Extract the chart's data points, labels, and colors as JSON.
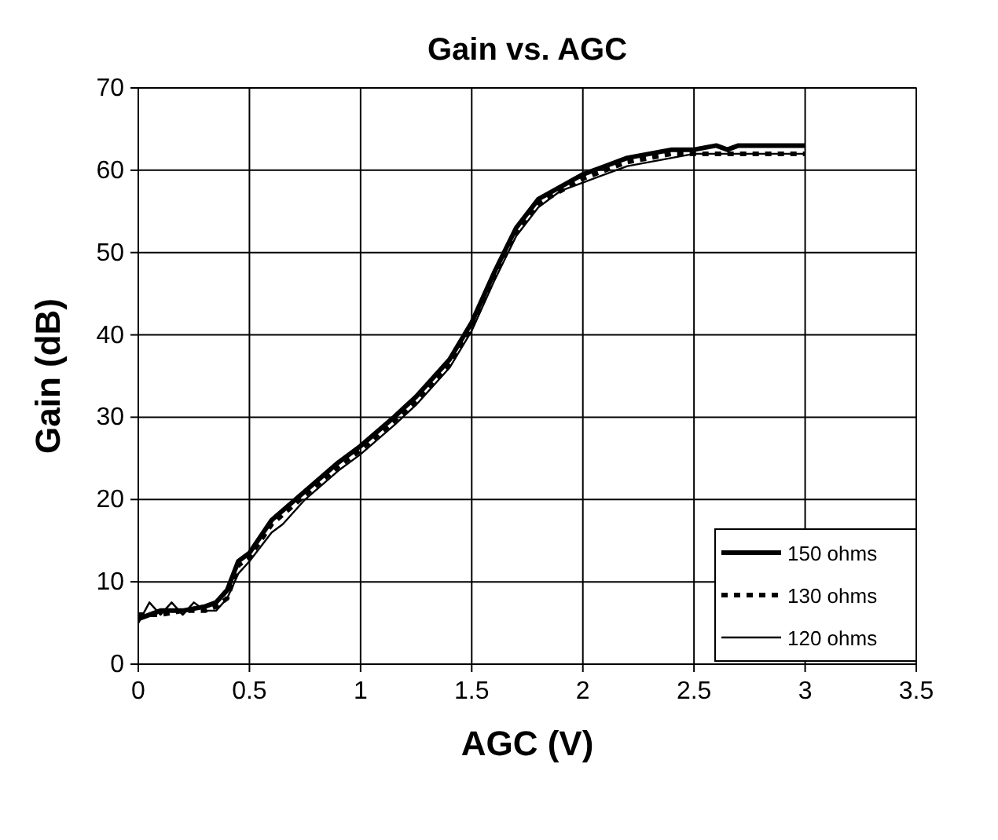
{
  "chart_data": {
    "type": "line",
    "title": "Gain vs. AGC",
    "xlabel": "AGC (V)",
    "ylabel": "Gain (dB)",
    "xlim": [
      0,
      3.5
    ],
    "xticks": [
      0,
      0.5,
      1,
      1.5,
      2,
      2.5,
      3,
      3.5
    ],
    "ylim": [
      0,
      70
    ],
    "yticks": [
      0,
      10,
      20,
      30,
      40,
      50,
      60,
      70
    ],
    "grid": true,
    "legend": "bottom right",
    "series": [
      {
        "name": "150 ohms",
        "color": "#000000",
        "line_style": "solid",
        "x": [
          0,
          0.05,
          0.1,
          0.2,
          0.3,
          0.35,
          0.4,
          0.45,
          0.5,
          0.6,
          0.75,
          0.9,
          1,
          1.15,
          1.25,
          1.4,
          1.5,
          1.6,
          1.7,
          1.8,
          1.9,
          2,
          2.2,
          2.4,
          2.5,
          2.6,
          2.65,
          2.7,
          3
        ],
        "values": [
          5.5,
          6,
          6.5,
          6.5,
          7,
          7.5,
          9,
          12.5,
          13.5,
          17.5,
          21,
          24.5,
          26.5,
          30,
          32.5,
          37,
          41.5,
          47.5,
          53,
          56.5,
          58,
          59.5,
          61.5,
          62.5,
          62.5,
          63,
          62.5,
          63,
          63
        ]
      },
      {
        "name": "130 ohms",
        "color": "#000000",
        "line_style": "dotted",
        "x": [
          0,
          0.1,
          0.2,
          0.3,
          0.35,
          0.4,
          0.45,
          0.5,
          0.6,
          0.75,
          0.9,
          1,
          1.15,
          1.25,
          1.4,
          1.5,
          1.6,
          1.7,
          1.8,
          1.9,
          2,
          2.2,
          2.4,
          2.5,
          3
        ],
        "values": [
          6,
          6,
          6.5,
          6.5,
          7,
          8,
          12,
          13,
          17,
          20.5,
          24,
          26,
          29.5,
          32,
          36.5,
          41,
          47,
          52.5,
          56,
          57.5,
          59,
          61,
          62,
          62,
          62
        ]
      },
      {
        "name": "120 ohms",
        "color": "#000000",
        "line_style": "solid",
        "x": [
          0,
          0.05,
          0.1,
          0.15,
          0.2,
          0.25,
          0.3,
          0.35,
          0.4,
          0.45,
          0.5,
          0.6,
          0.65,
          0.75,
          0.9,
          1,
          1.15,
          1.25,
          1.4,
          1.5,
          1.6,
          1.7,
          1.8,
          1.9,
          2,
          2.2,
          2.4,
          2.5,
          3
        ],
        "values": [
          5,
          7.5,
          6,
          7.5,
          6,
          7.5,
          6.5,
          6.5,
          8,
          11,
          12.5,
          16,
          17,
          20,
          23.5,
          25.5,
          29,
          31.5,
          36,
          40.5,
          46.5,
          52,
          55.5,
          57.5,
          58.5,
          60.5,
          61.5,
          62,
          62
        ]
      }
    ]
  }
}
